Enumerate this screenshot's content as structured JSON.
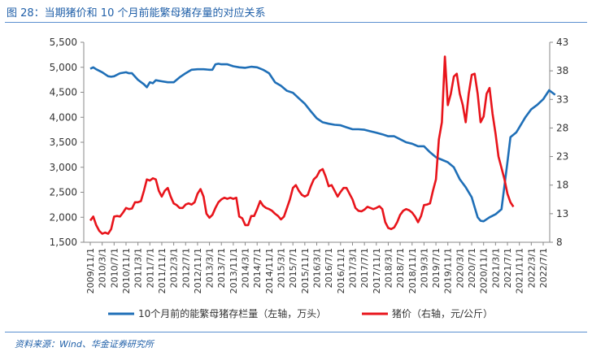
{
  "title": "图 28：当期猪价和 10 个月前能繁母猪存量的对应关系",
  "source": "资料来源：Wind、华金证券研究所",
  "chart_data": {
    "type": "line",
    "title": "图 28：当期猪价和 10 个月前能繁母猪存量的对应关系",
    "x": [
      "2009/11/1",
      "2010/3/1",
      "2010/7/1",
      "2010/11/1",
      "2011/3/1",
      "2011/7/1",
      "2011/11/1",
      "2012/3/1",
      "2012/7/1",
      "2012/11/1",
      "2013/3/1",
      "2013/7/1",
      "2013/11/1",
      "2014/3/1",
      "2014/7/1",
      "2014/11/1",
      "2015/3/1",
      "2015/7/1",
      "2015/11/1",
      "2016/3/1",
      "2016/7/1",
      "2016/11/1",
      "2017/3/1",
      "2017/7/1",
      "2017/11/1",
      "2018/3/1",
      "2018/7/1",
      "2018/11/1",
      "2019/3/1",
      "2019/7/1",
      "2019/11/1",
      "2020/3/1",
      "2020/7/1",
      "2020/11/1",
      "2021/3/1",
      "2021/7/1",
      "2021/11/1",
      "2022/3/1",
      "2022/7/1"
    ],
    "y_left": {
      "label": "10个月前的能繁母猪存栏量（左轴，万头）",
      "range": [
        1500,
        5500
      ],
      "ticks": [
        "1,500",
        "2,000",
        "2,500",
        "3,000",
        "3,500",
        "4,000",
        "4,500",
        "5,000",
        "5,500"
      ]
    },
    "y_right": {
      "label": "猪价（右轴，元/公斤）",
      "range": [
        8,
        43
      ],
      "ticks": [
        "8",
        "13",
        "18",
        "23",
        "28",
        "33",
        "38",
        "43"
      ]
    },
    "legend_position": "bottom",
    "grid": false,
    "series": [
      {
        "name": "10个月前的能繁母猪存栏量（左轴，万头）",
        "axis": "left",
        "color": "#1f6fb7",
        "points": [
          [
            "2009/11/1",
            4970
          ],
          [
            "2009/12/1",
            5000
          ],
          [
            "2010/1/1",
            4960
          ],
          [
            "2010/3/1",
            4900
          ],
          [
            "2010/5/1",
            4820
          ],
          [
            "2010/6/1",
            4810
          ],
          [
            "2010/7/1",
            4820
          ],
          [
            "2010/9/1",
            4880
          ],
          [
            "2010/11/1",
            4900
          ],
          [
            "2010/12/1",
            4880
          ],
          [
            "2011/1/1",
            4880
          ],
          [
            "2011/3/1",
            4750
          ],
          [
            "2011/5/1",
            4660
          ],
          [
            "2011/6/1",
            4600
          ],
          [
            "2011/7/1",
            4700
          ],
          [
            "2011/8/1",
            4680
          ],
          [
            "2011/9/1",
            4740
          ],
          [
            "2011/11/1",
            4720
          ],
          [
            "2012/1/1",
            4700
          ],
          [
            "2012/3/1",
            4700
          ],
          [
            "2012/5/1",
            4800
          ],
          [
            "2012/7/1",
            4880
          ],
          [
            "2012/9/1",
            4950
          ],
          [
            "2012/11/1",
            4960
          ],
          [
            "2013/1/1",
            4960
          ],
          [
            "2013/3/1",
            4950
          ],
          [
            "2013/4/1",
            4950
          ],
          [
            "2013/5/1",
            5060
          ],
          [
            "2013/6/1",
            5070
          ],
          [
            "2013/7/1",
            5060
          ],
          [
            "2013/9/1",
            5060
          ],
          [
            "2013/11/1",
            5020
          ],
          [
            "2014/1/1",
            5000
          ],
          [
            "2014/3/1",
            4990
          ],
          [
            "2014/5/1",
            5010
          ],
          [
            "2014/7/1",
            5000
          ],
          [
            "2014/9/1",
            4950
          ],
          [
            "2014/11/1",
            4880
          ],
          [
            "2015/1/1",
            4700
          ],
          [
            "2015/3/1",
            4630
          ],
          [
            "2015/5/1",
            4530
          ],
          [
            "2015/7/1",
            4490
          ],
          [
            "2015/9/1",
            4380
          ],
          [
            "2015/11/1",
            4270
          ],
          [
            "2016/1/1",
            4120
          ],
          [
            "2016/3/1",
            3980
          ],
          [
            "2016/5/1",
            3900
          ],
          [
            "2016/7/1",
            3870
          ],
          [
            "2016/9/1",
            3850
          ],
          [
            "2016/11/1",
            3840
          ],
          [
            "2017/1/1",
            3800
          ],
          [
            "2017/3/1",
            3760
          ],
          [
            "2017/5/1",
            3760
          ],
          [
            "2017/7/1",
            3750
          ],
          [
            "2017/9/1",
            3720
          ],
          [
            "2017/11/1",
            3690
          ],
          [
            "2018/1/1",
            3660
          ],
          [
            "2018/3/1",
            3620
          ],
          [
            "2018/5/1",
            3620
          ],
          [
            "2018/7/1",
            3560
          ],
          [
            "2018/9/1",
            3500
          ],
          [
            "2018/11/1",
            3470
          ],
          [
            "2019/1/1",
            3420
          ],
          [
            "2019/3/1",
            3420
          ],
          [
            "2019/5/1",
            3300
          ],
          [
            "2019/7/1",
            3200
          ],
          [
            "2019/9/1",
            3150
          ],
          [
            "2019/11/1",
            3100
          ],
          [
            "2020/1/1",
            3000
          ],
          [
            "2020/3/1",
            2760
          ],
          [
            "2020/5/1",
            2600
          ],
          [
            "2020/7/1",
            2400
          ],
          [
            "2020/8/1",
            2200
          ],
          [
            "2020/9/1",
            2000
          ],
          [
            "2020/10/1",
            1930
          ],
          [
            "2020/11/1",
            1920
          ],
          [
            "2021/1/1",
            2000
          ],
          [
            "2021/3/1",
            2060
          ],
          [
            "2021/5/1",
            2160
          ],
          [
            "2021/7/1",
            3100
          ],
          [
            "2021/8/1",
            3600
          ],
          [
            "2021/10/1",
            3700
          ],
          [
            "2021/11/1",
            3800
          ],
          [
            "2022/1/1",
            4000
          ],
          [
            "2022/3/1",
            4160
          ],
          [
            "2022/5/1",
            4250
          ],
          [
            "2022/7/1",
            4360
          ],
          [
            "2022/9/1",
            4540
          ],
          [
            "2022/11/1",
            4450
          ]
        ]
      },
      {
        "name": "猪价（右轴，元/公斤）",
        "axis": "right",
        "color": "#e8141b",
        "points": [
          [
            "2009/11/1",
            11.8
          ],
          [
            "2009/12/1",
            12.5
          ],
          [
            "2010/1/1",
            11.0
          ],
          [
            "2010/2/1",
            10.0
          ],
          [
            "2010/3/1",
            9.5
          ],
          [
            "2010/4/1",
            9.7
          ],
          [
            "2010/5/1",
            9.5
          ],
          [
            "2010/6/1",
            10.3
          ],
          [
            "2010/7/1",
            12.5
          ],
          [
            "2010/8/1",
            12.6
          ],
          [
            "2010/9/1",
            12.5
          ],
          [
            "2010/10/1",
            13.2
          ],
          [
            "2010/11/1",
            14.0
          ],
          [
            "2010/12/1",
            13.8
          ],
          [
            "2011/1/1",
            13.9
          ],
          [
            "2011/2/1",
            15.0
          ],
          [
            "2011/3/1",
            15.0
          ],
          [
            "2011/4/1",
            15.2
          ],
          [
            "2011/5/1",
            17.0
          ],
          [
            "2011/6/1",
            19.0
          ],
          [
            "2011/7/1",
            18.8
          ],
          [
            "2011/8/1",
            19.2
          ],
          [
            "2011/9/1",
            19.0
          ],
          [
            "2011/10/1",
            17.0
          ],
          [
            "2011/11/1",
            16.0
          ],
          [
            "2011/12/1",
            17.0
          ],
          [
            "2012/1/1",
            17.5
          ],
          [
            "2012/2/1",
            16.0
          ],
          [
            "2012/3/1",
            14.8
          ],
          [
            "2012/4/1",
            14.5
          ],
          [
            "2012/5/1",
            14.0
          ],
          [
            "2012/6/1",
            14.0
          ],
          [
            "2012/7/1",
            14.6
          ],
          [
            "2012/8/1",
            14.8
          ],
          [
            "2012/9/1",
            14.6
          ],
          [
            "2012/10/1",
            15.0
          ],
          [
            "2012/11/1",
            16.5
          ],
          [
            "2012/12/1",
            17.3
          ],
          [
            "2013/1/1",
            16.0
          ],
          [
            "2013/2/1",
            13.0
          ],
          [
            "2013/3/1",
            12.3
          ],
          [
            "2013/4/1",
            12.8
          ],
          [
            "2013/5/1",
            14.0
          ],
          [
            "2013/6/1",
            15.0
          ],
          [
            "2013/7/1",
            15.5
          ],
          [
            "2013/8/1",
            15.8
          ],
          [
            "2013/9/1",
            15.6
          ],
          [
            "2013/10/1",
            15.8
          ],
          [
            "2013/11/1",
            15.6
          ],
          [
            "2013/12/1",
            15.8
          ],
          [
            "2014/1/1",
            12.5
          ],
          [
            "2014/2/1",
            12.2
          ],
          [
            "2014/3/1",
            11.0
          ],
          [
            "2014/4/1",
            11.0
          ],
          [
            "2014/5/1",
            12.6
          ],
          [
            "2014/6/1",
            12.6
          ],
          [
            "2014/7/1",
            13.8
          ],
          [
            "2014/8/1",
            15.2
          ],
          [
            "2014/9/1",
            14.4
          ],
          [
            "2014/10/1",
            14.0
          ],
          [
            "2014/11/1",
            13.8
          ],
          [
            "2014/12/1",
            13.5
          ],
          [
            "2015/1/1",
            13.0
          ],
          [
            "2015/2/1",
            12.6
          ],
          [
            "2015/3/1",
            12.0
          ],
          [
            "2015/4/1",
            12.5
          ],
          [
            "2015/5/1",
            14.0
          ],
          [
            "2015/6/1",
            15.5
          ],
          [
            "2015/7/1",
            17.5
          ],
          [
            "2015/8/1",
            18.0
          ],
          [
            "2015/9/1",
            17.0
          ],
          [
            "2015/10/1",
            16.3
          ],
          [
            "2015/11/1",
            16.0
          ],
          [
            "2015/12/1",
            16.3
          ],
          [
            "2016/1/1",
            17.8
          ],
          [
            "2016/2/1",
            19.0
          ],
          [
            "2016/3/1",
            19.5
          ],
          [
            "2016/4/1",
            20.5
          ],
          [
            "2016/5/1",
            20.8
          ],
          [
            "2016/6/1",
            19.5
          ],
          [
            "2016/7/1",
            17.8
          ],
          [
            "2016/8/1",
            18.0
          ],
          [
            "2016/9/1",
            17.0
          ],
          [
            "2016/10/1",
            16.0
          ],
          [
            "2016/11/1",
            16.8
          ],
          [
            "2016/12/1",
            17.5
          ],
          [
            "2017/1/1",
            17.5
          ],
          [
            "2017/2/1",
            16.5
          ],
          [
            "2017/3/1",
            15.5
          ],
          [
            "2017/4/1",
            14.0
          ],
          [
            "2017/5/1",
            13.5
          ],
          [
            "2017/6/1",
            13.4
          ],
          [
            "2017/7/1",
            13.7
          ],
          [
            "2017/8/1",
            14.2
          ],
          [
            "2017/9/1",
            14.0
          ],
          [
            "2017/10/1",
            13.8
          ],
          [
            "2017/11/1",
            14.0
          ],
          [
            "2017/12/1",
            14.3
          ],
          [
            "2018/1/1",
            13.8
          ],
          [
            "2018/2/1",
            11.5
          ],
          [
            "2018/3/1",
            10.5
          ],
          [
            "2018/4/1",
            10.3
          ],
          [
            "2018/5/1",
            10.6
          ],
          [
            "2018/6/1",
            11.5
          ],
          [
            "2018/7/1",
            12.8
          ],
          [
            "2018/8/1",
            13.5
          ],
          [
            "2018/9/1",
            13.8
          ],
          [
            "2018/10/1",
            13.6
          ],
          [
            "2018/11/1",
            13.2
          ],
          [
            "2018/12/1",
            12.5
          ],
          [
            "2019/1/1",
            11.5
          ],
          [
            "2019/2/1",
            12.6
          ],
          [
            "2019/3/1",
            14.5
          ],
          [
            "2019/4/1",
            14.6
          ],
          [
            "2019/5/1",
            14.8
          ],
          [
            "2019/6/1",
            17.0
          ],
          [
            "2019/7/1",
            19.0
          ],
          [
            "2019/8/1",
            26.0
          ],
          [
            "2019/9/1",
            29.0
          ],
          [
            "2019/10/1",
            40.5
          ],
          [
            "2019/11/1",
            32.0
          ],
          [
            "2019/12/1",
            34.0
          ],
          [
            "2020/1/1",
            37.0
          ],
          [
            "2020/2/1",
            37.5
          ],
          [
            "2020/3/1",
            34.0
          ],
          [
            "2020/4/1",
            32.0
          ],
          [
            "2020/5/1",
            29.0
          ],
          [
            "2020/6/1",
            34.0
          ],
          [
            "2020/7/1",
            37.3
          ],
          [
            "2020/8/1",
            37.5
          ],
          [
            "2020/9/1",
            34.0
          ],
          [
            "2020/10/1",
            29.0
          ],
          [
            "2020/11/1",
            30.0
          ],
          [
            "2020/12/1",
            34.0
          ],
          [
            "2021/1/1",
            35.0
          ],
          [
            "2021/2/1",
            30.5
          ],
          [
            "2021/3/1",
            27.0
          ],
          [
            "2021/4/1",
            23.0
          ],
          [
            "2021/5/1",
            21.0
          ],
          [
            "2021/6/1",
            19.0
          ],
          [
            "2021/7/1",
            16.5
          ],
          [
            "2021/8/1",
            15.0
          ],
          [
            "2021/9/1",
            14.2
          ]
        ]
      }
    ]
  }
}
